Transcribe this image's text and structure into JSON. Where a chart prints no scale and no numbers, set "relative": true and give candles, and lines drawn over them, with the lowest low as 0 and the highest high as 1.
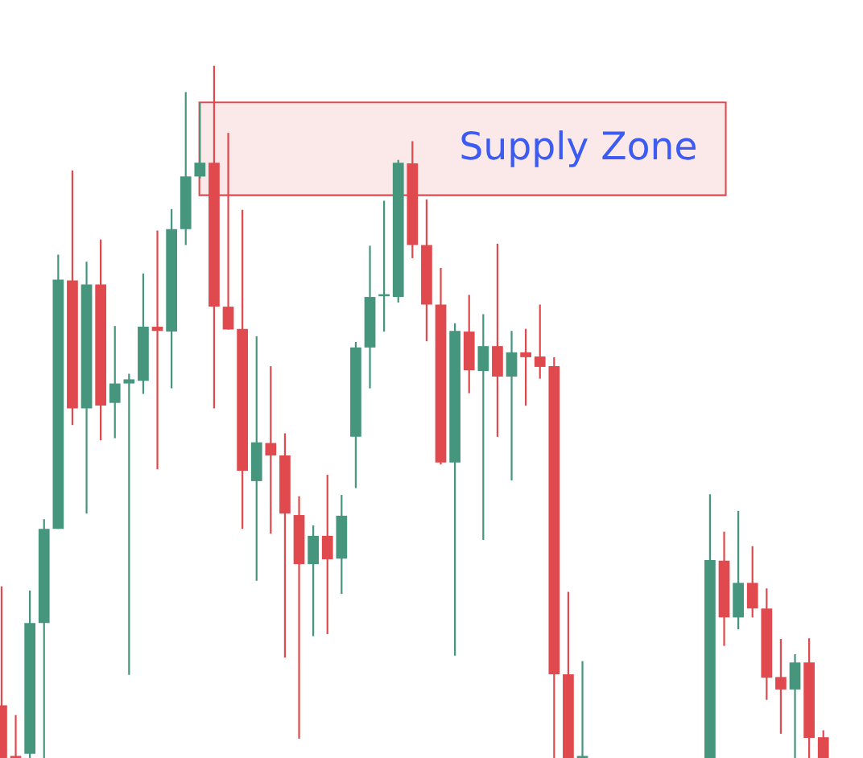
{
  "chart_data": {
    "type": "candlestick",
    "relative": true,
    "categories": [
      null,
      null,
      null,
      null,
      null,
      null,
      null,
      null,
      null,
      null,
      null,
      null,
      null,
      null,
      null,
      null,
      null,
      null,
      null,
      null,
      null,
      null,
      null,
      null,
      null,
      null,
      null,
      null,
      null,
      null,
      null,
      null,
      null,
      null,
      null,
      null,
      null,
      null,
      null,
      null,
      null,
      null,
      null,
      null,
      null,
      null,
      null,
      null,
      null,
      null,
      null,
      null,
      null,
      null,
      null,
      null,
      null,
      null,
      null
    ],
    "ohlc": [
      [
        0.076,
        0.248,
        0,
        0
      ],
      [
        0,
        0.062,
        0,
        0
      ],
      [
        0.006,
        0.242,
        0,
        0.195
      ],
      [
        0.195,
        0.345,
        0,
        0.331
      ],
      [
        0.331,
        0.727,
        0.331,
        0.691
      ],
      [
        0.69,
        0.849,
        0.481,
        0.505
      ],
      [
        0.505,
        0.717,
        0.353,
        0.684
      ],
      [
        0.684,
        0.749,
        0.459,
        0.509
      ],
      [
        0.513,
        0.624,
        0.462,
        0.541
      ],
      [
        0.541,
        0.555,
        0.12,
        0.547
      ],
      [
        0.545,
        0.7,
        0.526,
        0.623
      ],
      [
        0.623,
        0.762,
        0.417,
        0.617
      ],
      [
        0.616,
        0.793,
        0.534,
        0.764
      ],
      [
        0.764,
        0.962,
        0.741,
        0.84
      ],
      [
        0.84,
        0.947,
        0.837,
        0.86
      ],
      [
        0.86,
        1.0,
        0.505,
        0.652
      ],
      [
        0.652,
        0.903,
        0.619,
        0.619
      ],
      [
        0.62,
        0.792,
        0.331,
        0.415
      ],
      [
        0.4,
        0.609,
        0.256,
        0.456
      ],
      [
        0.455,
        0.566,
        0.324,
        0.437
      ],
      [
        0.437,
        0.469,
        0.145,
        0.353
      ],
      [
        0.351,
        0.378,
        0.028,
        0.28
      ],
      [
        0.28,
        0.336,
        0.176,
        0.321
      ],
      [
        0.321,
        0.409,
        0.179,
        0.287
      ],
      [
        0.288,
        0.38,
        0.237,
        0.35
      ],
      [
        0.464,
        0.601,
        0.39,
        0.593
      ],
      [
        0.593,
        0.74,
        0.534,
        0.666
      ],
      [
        0.667,
        0.805,
        0.616,
        0.667
      ],
      [
        0.666,
        0.864,
        0.658,
        0.86
      ],
      [
        0.859,
        0.891,
        0.722,
        0.741
      ],
      [
        0.741,
        0.807,
        0.602,
        0.655
      ],
      [
        0.655,
        0.708,
        0.424,
        0.427
      ],
      [
        0.427,
        0.628,
        0.148,
        0.617
      ],
      [
        0.616,
        0.669,
        0.527,
        0.56
      ],
      [
        0.559,
        0.641,
        0.315,
        0.595
      ],
      [
        0.595,
        0.743,
        0.464,
        0.551
      ],
      [
        0.551,
        0.617,
        0.401,
        0.586
      ],
      [
        0.586,
        0.62,
        0.509,
        0.579
      ],
      [
        0.58,
        0.655,
        0.548,
        0.565
      ],
      [
        0.566,
        0.579,
        0,
        0.121
      ],
      [
        0.121,
        0.24,
        0,
        0
      ],
      [
        0,
        0.14,
        0,
        0
      ],
      null,
      null,
      null,
      null,
      null,
      null,
      null,
      null,
      [
        0,
        0.381,
        0,
        0.286
      ],
      [
        0.285,
        0.327,
        0.162,
        0.203
      ],
      [
        0.203,
        0.357,
        0.186,
        0.253
      ],
      [
        0.253,
        0.306,
        0.203,
        0.216
      ],
      [
        0.216,
        0.245,
        0.084,
        0.116
      ],
      [
        0.117,
        0.172,
        0.035,
        0.099
      ],
      [
        0.099,
        0.15,
        0,
        0.138
      ],
      [
        0.138,
        0.173,
        0,
        0.029
      ],
      [
        0.03,
        0.04,
        0,
        0
      ]
    ],
    "colors": [
      "#e04a4f",
      "#e04a4f",
      "#46967e",
      "#46967e",
      "#46967e",
      "#e04a4f",
      "#46967e",
      "#e04a4f",
      "#46967e",
      "#46967e",
      "#46967e",
      "#e04a4f",
      "#46967e",
      "#46967e",
      "#46967e",
      "#e04a4f",
      "#e04a4f",
      "#e04a4f",
      "#46967e",
      "#e04a4f",
      "#e04a4f",
      "#e04a4f",
      "#46967e",
      "#e04a4f",
      "#46967e",
      "#46967e",
      "#46967e",
      "#46967e",
      "#46967e",
      "#e04a4f",
      "#e04a4f",
      "#e04a4f",
      "#46967e",
      "#e04a4f",
      "#46967e",
      "#e04a4f",
      "#46967e",
      "#e04a4f",
      "#e04a4f",
      "#e04a4f",
      "#e04a4f",
      "#46967e",
      null,
      null,
      null,
      null,
      null,
      null,
      null,
      null,
      "#46967e",
      "#e04a4f",
      "#46967e",
      "#e04a4f",
      "#e04a4f",
      "#e04a4f",
      "#46967e",
      "#e04a4f",
      "#e04a4f"
    ],
    "bands": [
      {
        "axis": "y",
        "from": 0.813,
        "to": 0.947,
        "label": "Supply Zone",
        "color": "#e04a4f"
      }
    ]
  }
}
